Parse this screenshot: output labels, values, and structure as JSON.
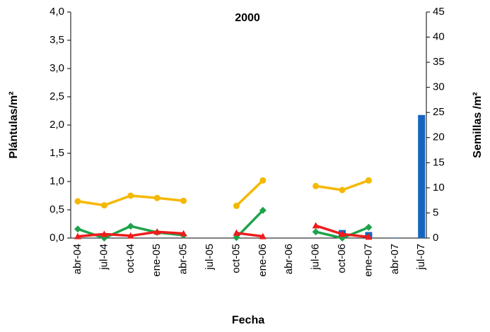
{
  "chart_data": {
    "type": "line",
    "title": "2000",
    "xlabel": "Fecha",
    "ylabel": "Plántulas/m²",
    "y2label": "Semillas /m²",
    "categories": [
      "abr-04",
      "jul-04",
      "oct-04",
      "ene-05",
      "abr-05",
      "jul-05",
      "oct-05",
      "ene-06",
      "abr-06",
      "jul-06",
      "oct-06",
      "ene-07",
      "abr-07",
      "jul-07"
    ],
    "series": [
      {
        "type": "bar",
        "axis": "y2",
        "color": "#1565c0",
        "values": [
          null,
          null,
          null,
          null,
          null,
          null,
          null,
          null,
          null,
          null,
          1.6,
          1.2,
          0.1,
          24.5
        ]
      },
      {
        "type": "line",
        "marker": "circle",
        "color": "#f5b800",
        "values": [
          0.65,
          0.58,
          0.75,
          0.71,
          0.66,
          null,
          0.57,
          1.02,
          null,
          0.92,
          0.85,
          1.02,
          null,
          null
        ]
      },
      {
        "type": "line",
        "marker": "diamond",
        "color": "#1fa24a",
        "values": [
          0.16,
          0.0,
          0.21,
          0.1,
          0.05,
          null,
          0.01,
          0.49,
          null,
          0.11,
          0.0,
          0.19,
          null,
          null
        ]
      },
      {
        "type": "line",
        "marker": "triangle",
        "color": "#ee1c1c",
        "values": [
          0.03,
          0.07,
          0.04,
          0.11,
          0.08,
          null,
          0.09,
          0.03,
          null,
          0.22,
          0.07,
          0.02,
          null,
          null
        ]
      }
    ],
    "ylim": [
      0,
      4
    ],
    "yticks": [
      {
        "value": 0,
        "label": "0,0"
      },
      {
        "value": 0.5,
        "label": "0,5"
      },
      {
        "value": 1,
        "label": "1,0"
      },
      {
        "value": 1.5,
        "label": "1,5"
      },
      {
        "value": 2,
        "label": "2,0"
      },
      {
        "value": 2.5,
        "label": "2,5"
      },
      {
        "value": 3,
        "label": "3,0"
      },
      {
        "value": 3.5,
        "label": "3,5"
      },
      {
        "value": 4,
        "label": "4,0"
      }
    ],
    "y2lim": [
      0,
      45
    ],
    "y2ticks": [
      0,
      5,
      10,
      15,
      20,
      25,
      30,
      35,
      40,
      45
    ],
    "grid": false
  }
}
